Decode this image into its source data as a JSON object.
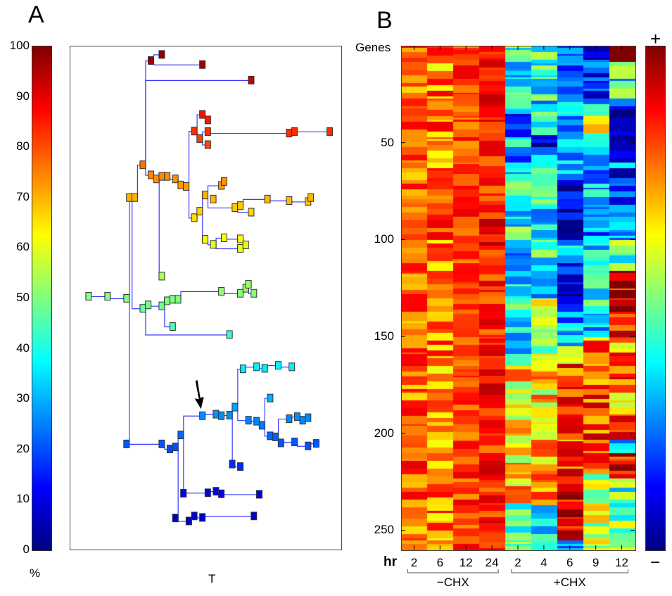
{
  "figure": {
    "panel_a_label": "A",
    "panel_b_label": "B"
  },
  "panel_a": {
    "colorbar": {
      "unit_label": "%",
      "ticks": [
        "100",
        "90",
        "80",
        "70",
        "60",
        "50",
        "40",
        "30",
        "20",
        "10",
        "0"
      ],
      "range": [
        0,
        100
      ],
      "colormap": "jet"
    },
    "xlabel": "T",
    "edge_color": "#3a3aff",
    "arrow_target_node": "n_arrow",
    "nodes": [
      {
        "id": "root0",
        "t": 0.07,
        "v": 50.2,
        "start": true
      },
      {
        "id": "r1",
        "t": 0.14,
        "v": 50.2
      },
      {
        "id": "r2",
        "t": 0.21,
        "v": 49.8
      },
      {
        "id": "a1",
        "t": 0.22,
        "v": 69.8
      },
      {
        "id": "a2",
        "t": 0.24,
        "v": 69.8
      },
      {
        "id": "b1",
        "t": 0.27,
        "v": 76.3
      },
      {
        "id": "c1",
        "t": 0.3,
        "v": 97.0
      },
      {
        "id": "c2",
        "t": 0.34,
        "v": 98.2
      },
      {
        "id": "c3",
        "t": 0.49,
        "v": 96.2
      },
      {
        "id": "d1",
        "t": 0.67,
        "v": 93.1
      },
      {
        "id": "e1",
        "t": 0.3,
        "v": 74.3
      },
      {
        "id": "e2",
        "t": 0.32,
        "v": 73.5
      },
      {
        "id": "e3",
        "t": 0.34,
        "v": 74.0
      },
      {
        "id": "e4",
        "t": 0.36,
        "v": 74.0
      },
      {
        "id": "e5",
        "t": 0.39,
        "v": 73.5
      },
      {
        "id": "e6",
        "t": 0.41,
        "v": 72.3
      },
      {
        "id": "e7",
        "t": 0.43,
        "v": 72.0
      },
      {
        "id": "f1",
        "t": 0.46,
        "v": 83.0
      },
      {
        "id": "f2",
        "t": 0.49,
        "v": 86.3
      },
      {
        "id": "f3",
        "t": 0.51,
        "v": 85.2
      },
      {
        "id": "f4",
        "t": 0.48,
        "v": 81.5
      },
      {
        "id": "f5",
        "t": 0.51,
        "v": 82.9
      },
      {
        "id": "f6",
        "t": 0.51,
        "v": 80.3
      },
      {
        "id": "f7",
        "t": 0.81,
        "v": 82.6
      },
      {
        "id": "f8",
        "t": 0.83,
        "v": 82.9
      },
      {
        "id": "f9",
        "t": 0.96,
        "v": 82.9
      },
      {
        "id": "g1",
        "t": 0.46,
        "v": 65.8
      },
      {
        "id": "g2",
        "t": 0.48,
        "v": 67.1
      },
      {
        "id": "g3",
        "t": 0.5,
        "v": 70.3
      },
      {
        "id": "g4",
        "t": 0.53,
        "v": 69.5
      },
      {
        "id": "g5",
        "t": 0.56,
        "v": 72.2
      },
      {
        "id": "g6",
        "t": 0.57,
        "v": 73.0
      },
      {
        "id": "g7",
        "t": 0.61,
        "v": 67.8
      },
      {
        "id": "g8",
        "t": 0.63,
        "v": 68.2
      },
      {
        "id": "g9",
        "t": 0.67,
        "v": 66.9
      },
      {
        "id": "g10",
        "t": 0.73,
        "v": 69.5
      },
      {
        "id": "g11",
        "t": 0.81,
        "v": 69.2
      },
      {
        "id": "g12",
        "t": 0.88,
        "v": 69.0
      },
      {
        "id": "g13",
        "t": 0.89,
        "v": 69.8
      },
      {
        "id": "h1",
        "t": 0.5,
        "v": 61.5
      },
      {
        "id": "h2",
        "t": 0.53,
        "v": 60.5
      },
      {
        "id": "h3",
        "t": 0.57,
        "v": 61.8
      },
      {
        "id": "h4",
        "t": 0.63,
        "v": 61.6
      },
      {
        "id": "h5",
        "t": 0.63,
        "v": 59.7
      },
      {
        "id": "h6",
        "t": 0.65,
        "v": 60.4
      },
      {
        "id": "i1",
        "t": 0.34,
        "v": 54.2
      },
      {
        "id": "j1",
        "t": 0.27,
        "v": 47.8
      },
      {
        "id": "j2",
        "t": 0.29,
        "v": 48.5
      },
      {
        "id": "j3",
        "t": 0.34,
        "v": 48.3
      },
      {
        "id": "j4",
        "t": 0.36,
        "v": 49.3
      },
      {
        "id": "j5",
        "t": 0.38,
        "v": 49.6
      },
      {
        "id": "j6",
        "t": 0.4,
        "v": 49.6
      },
      {
        "id": "j7",
        "t": 0.56,
        "v": 51.2
      },
      {
        "id": "j8",
        "t": 0.63,
        "v": 50.8
      },
      {
        "id": "j9",
        "t": 0.65,
        "v": 51.8
      },
      {
        "id": "j10",
        "t": 0.66,
        "v": 52.6
      },
      {
        "id": "j11",
        "t": 0.68,
        "v": 50.8
      },
      {
        "id": "k1",
        "t": 0.38,
        "v": 44.2
      },
      {
        "id": "l1",
        "t": 0.59,
        "v": 42.6
      },
      {
        "id": "m1",
        "t": 0.21,
        "v": 20.9
      },
      {
        "id": "m2",
        "t": 0.34,
        "v": 20.9
      },
      {
        "id": "m3",
        "t": 0.37,
        "v": 19.9
      },
      {
        "id": "m4",
        "t": 0.39,
        "v": 20.3
      },
      {
        "id": "m5",
        "t": 0.41,
        "v": 22.7
      },
      {
        "id": "n_arrow",
        "t": 0.49,
        "v": 26.5
      },
      {
        "id": "n2",
        "t": 0.54,
        "v": 26.8
      },
      {
        "id": "n3",
        "t": 0.56,
        "v": 26.5
      },
      {
        "id": "n4",
        "t": 0.59,
        "v": 26.6
      },
      {
        "id": "n5",
        "t": 0.61,
        "v": 28.2
      },
      {
        "id": "o1",
        "t": 0.64,
        "v": 35.8
      },
      {
        "id": "o2",
        "t": 0.69,
        "v": 36.2
      },
      {
        "id": "o3",
        "t": 0.72,
        "v": 35.9
      },
      {
        "id": "o4",
        "t": 0.77,
        "v": 36.5
      },
      {
        "id": "o5",
        "t": 0.82,
        "v": 36.2
      },
      {
        "id": "p1",
        "t": 0.6,
        "v": 16.9
      },
      {
        "id": "p2",
        "t": 0.63,
        "v": 16.4
      },
      {
        "id": "q1",
        "t": 0.66,
        "v": 25.6
      },
      {
        "id": "q2",
        "t": 0.69,
        "v": 25.4
      },
      {
        "id": "q3",
        "t": 0.71,
        "v": 24.6
      },
      {
        "id": "q4",
        "t": 0.74,
        "v": 22.5
      },
      {
        "id": "q5",
        "t": 0.76,
        "v": 22.3
      },
      {
        "id": "r_b",
        "t": 0.74,
        "v": 30.0
      },
      {
        "id": "s1",
        "t": 0.81,
        "v": 25.9
      },
      {
        "id": "s2",
        "t": 0.84,
        "v": 26.3
      },
      {
        "id": "s3",
        "t": 0.86,
        "v": 25.6
      },
      {
        "id": "s4",
        "t": 0.88,
        "v": 26.1
      },
      {
        "id": "u1",
        "t": 0.78,
        "v": 21.1
      },
      {
        "id": "u2",
        "t": 0.83,
        "v": 21.3
      },
      {
        "id": "u3",
        "t": 0.88,
        "v": 20.5
      },
      {
        "id": "u4",
        "t": 0.91,
        "v": 21.0
      },
      {
        "id": "w1",
        "t": 0.42,
        "v": 11.1
      },
      {
        "id": "w2",
        "t": 0.51,
        "v": 11.2
      },
      {
        "id": "w3",
        "t": 0.54,
        "v": 11.5
      },
      {
        "id": "w4",
        "t": 0.56,
        "v": 11.0
      },
      {
        "id": "w5",
        "t": 0.7,
        "v": 10.9
      },
      {
        "id": "y1",
        "t": 0.39,
        "v": 6.2
      },
      {
        "id": "y2",
        "t": 0.44,
        "v": 5.6
      },
      {
        "id": "y3",
        "t": 0.46,
        "v": 6.6
      },
      {
        "id": "y4",
        "t": 0.49,
        "v": 6.3
      },
      {
        "id": "y5",
        "t": 0.68,
        "v": 6.6
      }
    ],
    "edges": [
      [
        "root0",
        "r1"
      ],
      [
        "r1",
        "r2"
      ],
      [
        "r2",
        "a1"
      ],
      [
        "a1",
        "a2"
      ],
      [
        "a2",
        "b1"
      ],
      [
        "b1",
        "c1"
      ],
      [
        "c1",
        "c2"
      ],
      [
        "c1",
        "c3"
      ],
      [
        "b1",
        "d1"
      ],
      [
        "b1",
        "e1"
      ],
      [
        "e1",
        "e2"
      ],
      [
        "e2",
        "e3"
      ],
      [
        "e3",
        "e4"
      ],
      [
        "e4",
        "e5"
      ],
      [
        "e5",
        "e6"
      ],
      [
        "e6",
        "e7"
      ],
      [
        "e7",
        "f1"
      ],
      [
        "f1",
        "f2"
      ],
      [
        "f2",
        "f3"
      ],
      [
        "f1",
        "f4"
      ],
      [
        "f4",
        "f5"
      ],
      [
        "f5",
        "f7"
      ],
      [
        "f7",
        "f8"
      ],
      [
        "f8",
        "f9"
      ],
      [
        "f4",
        "f6"
      ],
      [
        "e7",
        "g1"
      ],
      [
        "g1",
        "g2"
      ],
      [
        "g2",
        "g3"
      ],
      [
        "g3",
        "g5"
      ],
      [
        "g5",
        "g6"
      ],
      [
        "g3",
        "g7"
      ],
      [
        "g7",
        "g8"
      ],
      [
        "g8",
        "g10"
      ],
      [
        "g10",
        "g11"
      ],
      [
        "g11",
        "g12"
      ],
      [
        "g12",
        "g13"
      ],
      [
        "g7",
        "g9"
      ],
      [
        "g2",
        "h1"
      ],
      [
        "h1",
        "h2"
      ],
      [
        "h2",
        "h3"
      ],
      [
        "h3",
        "h4"
      ],
      [
        "h2",
        "h5"
      ],
      [
        "h5",
        "h6"
      ],
      [
        "e2",
        "i1"
      ],
      [
        "a1",
        "j1"
      ],
      [
        "j1",
        "j2"
      ],
      [
        "j2",
        "j3"
      ],
      [
        "j3",
        "j4"
      ],
      [
        "j4",
        "j5"
      ],
      [
        "j5",
        "j6"
      ],
      [
        "j6",
        "j7"
      ],
      [
        "j7",
        "j8"
      ],
      [
        "j8",
        "j9"
      ],
      [
        "j9",
        "j10"
      ],
      [
        "j9",
        "j11"
      ],
      [
        "j3",
        "k1"
      ],
      [
        "j1",
        "l1"
      ],
      [
        "r2",
        "m1"
      ],
      [
        "m1",
        "m2"
      ],
      [
        "m2",
        "m3"
      ],
      [
        "m3",
        "m4"
      ],
      [
        "m4",
        "m5"
      ],
      [
        "m5",
        "n_arrow"
      ],
      [
        "n_arrow",
        "n2"
      ],
      [
        "n2",
        "n3"
      ],
      [
        "n3",
        "n4"
      ],
      [
        "n4",
        "n5"
      ],
      [
        "n5",
        "o1"
      ],
      [
        "o1",
        "o2"
      ],
      [
        "o2",
        "o3"
      ],
      [
        "o3",
        "o4"
      ],
      [
        "o4",
        "o5"
      ],
      [
        "n4",
        "p1"
      ],
      [
        "p1",
        "p2"
      ],
      [
        "n5",
        "q1"
      ],
      [
        "q1",
        "q2"
      ],
      [
        "q2",
        "q3"
      ],
      [
        "q3",
        "q4"
      ],
      [
        "q4",
        "q5"
      ],
      [
        "q3",
        "r_b"
      ],
      [
        "q5",
        "s1"
      ],
      [
        "s1",
        "s2"
      ],
      [
        "s2",
        "s3"
      ],
      [
        "s3",
        "s4"
      ],
      [
        "q5",
        "u1"
      ],
      [
        "u1",
        "u2"
      ],
      [
        "u2",
        "u3"
      ],
      [
        "u3",
        "u4"
      ],
      [
        "m5",
        "w1"
      ],
      [
        "w1",
        "w2"
      ],
      [
        "w2",
        "w3"
      ],
      [
        "w3",
        "w4"
      ],
      [
        "w4",
        "w5"
      ],
      [
        "m4",
        "y1"
      ],
      [
        "y1",
        "y2"
      ],
      [
        "y2",
        "y3"
      ],
      [
        "y3",
        "y4"
      ],
      [
        "y4",
        "y5"
      ]
    ]
  },
  "chart_data": {
    "type": "heatmap",
    "title": "",
    "ylabel": "Genes",
    "xlabel": "hr",
    "y_ticks": [
      "50",
      "100",
      "150",
      "200",
      "250"
    ],
    "y_tick_values": [
      50,
      100,
      150,
      200,
      250
    ],
    "n_genes": 260,
    "columns": [
      {
        "group": "−CHX",
        "label": "2"
      },
      {
        "group": "−CHX",
        "label": "6"
      },
      {
        "group": "−CHX",
        "label": "12"
      },
      {
        "group": "−CHX",
        "label": "24"
      },
      {
        "group": "+CHX",
        "label": "2"
      },
      {
        "group": "+CHX",
        "label": "4"
      },
      {
        "group": "+CHX",
        "label": "6"
      },
      {
        "group": "+CHX",
        "label": "9"
      },
      {
        "group": "+CHX",
        "label": "12"
      }
    ],
    "groups": [
      {
        "label": "−CHX",
        "columns": [
          0,
          3
        ]
      },
      {
        "label": "+CHX",
        "columns": [
          4,
          8
        ]
      }
    ],
    "colorbar": {
      "top_label": "+",
      "bottom_label": "−",
      "range": [
        -1,
        1
      ],
      "colormap": "jet"
    },
    "column_profiles": [
      {
        "base": 0.55,
        "jitter": 0.25,
        "segments": []
      },
      {
        "base": 0.5,
        "jitter": 0.3,
        "segments": []
      },
      {
        "base": 0.62,
        "jitter": 0.18,
        "segments": []
      },
      {
        "base": 0.7,
        "jitter": 0.2,
        "segments": []
      },
      {
        "base": -0.2,
        "jitter": 0.35,
        "segments": [
          [
            1,
            8,
            -0.1
          ],
          [
            35,
            45,
            -0.8
          ],
          [
            50,
            60,
            -0.75
          ],
          [
            100,
            115,
            -0.55
          ],
          [
            165,
            200,
            0.3
          ],
          [
            200,
            235,
            0.35
          ],
          [
            240,
            260,
            -0.1
          ]
        ]
      },
      {
        "base": -0.25,
        "jitter": 0.35,
        "segments": [
          [
            1,
            8,
            -0.1
          ],
          [
            45,
            55,
            -0.85
          ],
          [
            130,
            165,
            0.1
          ],
          [
            165,
            235,
            0.35
          ],
          [
            240,
            260,
            -0.3
          ]
        ]
      },
      {
        "base": -0.4,
        "jitter": 0.3,
        "segments": [
          [
            1,
            40,
            -0.45
          ],
          [
            70,
            100,
            -0.9
          ],
          [
            110,
            130,
            -0.85
          ],
          [
            155,
            165,
            0.3
          ],
          [
            165,
            220,
            0.6
          ],
          [
            222,
            255,
            0.85
          ]
        ]
      },
      {
        "base": -0.3,
        "jitter": 0.35,
        "segments": [
          [
            1,
            30,
            -0.7
          ],
          [
            35,
            45,
            0.1
          ],
          [
            60,
            100,
            -0.4
          ],
          [
            150,
            220,
            0.55
          ],
          [
            220,
            260,
            0.1
          ]
        ]
      },
      {
        "base": -0.2,
        "jitter": 0.4,
        "segments": [
          [
            1,
            5,
            1.0
          ],
          [
            30,
            55,
            -0.9
          ],
          [
            55,
            100,
            -0.55
          ],
          [
            115,
            150,
            0.8
          ],
          [
            150,
            200,
            0.5
          ],
          [
            210,
            222,
            0.75
          ],
          [
            225,
            260,
            -0.05
          ]
        ]
      }
    ]
  }
}
